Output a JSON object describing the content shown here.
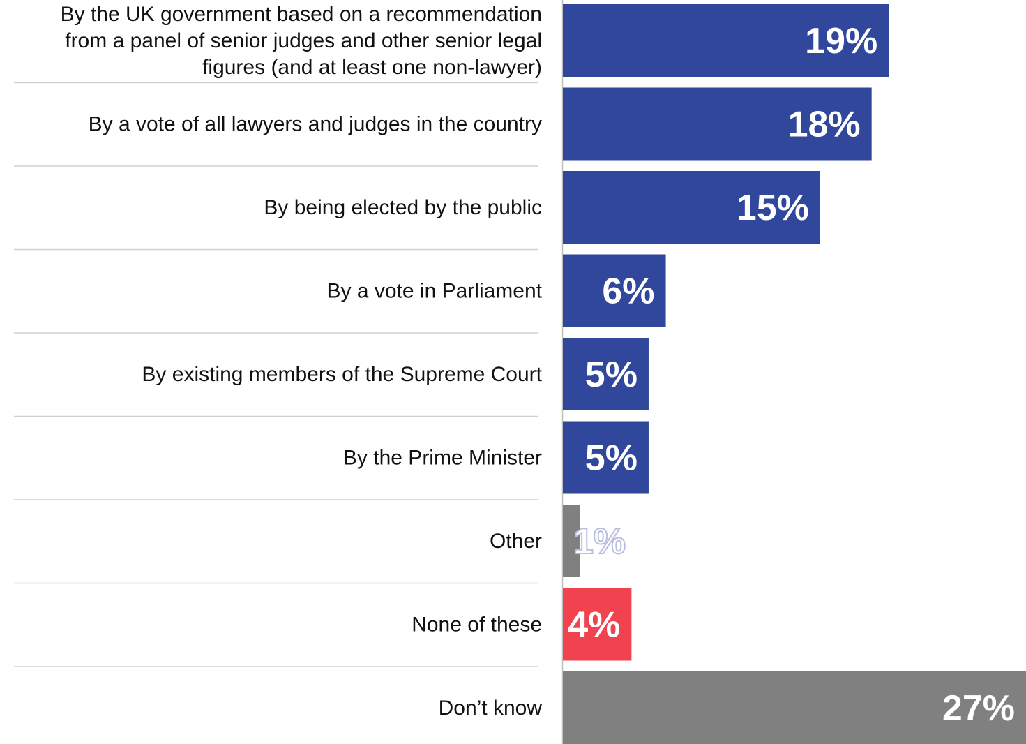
{
  "chart_data": {
    "type": "bar",
    "orientation": "horizontal",
    "title": "",
    "xlabel": "",
    "ylabel": "",
    "xlim": [
      0,
      27
    ],
    "grid": false,
    "legend": "none",
    "categories": [
      "By the UK government based on a recommendation from a panel of senior judges and other senior legal figures (and at least one non-lawyer)",
      "By a vote of all lawyers and judges in the country",
      "By being elected by the public",
      "By a vote in Parliament",
      "By existing members of the Supreme Court",
      "By the Prime Minister",
      "Other",
      "None of these",
      "Don’t know"
    ],
    "category_lines": [
      [
        "By the UK government based on a recommendation",
        "from a panel of senior judges and other senior legal",
        "figures (and at least one non-lawyer)"
      ],
      [
        "By a vote of all lawyers and judges in the country"
      ],
      [
        "By being elected by the public"
      ],
      [
        "By a vote in Parliament"
      ],
      [
        "By existing members of the Supreme Court"
      ],
      [
        "By the Prime Minister"
      ],
      [
        "Other"
      ],
      [
        "None of these"
      ],
      [
        "Don’t know"
      ]
    ],
    "values": [
      19,
      18,
      15,
      6,
      5,
      5,
      1,
      4,
      27
    ],
    "value_labels": [
      "19%",
      "18%",
      "15%",
      "6%",
      "5%",
      "5%",
      "1%",
      "4%",
      "27%"
    ],
    "bar_colors": [
      "#31479c",
      "#31479c",
      "#31479c",
      "#31479c",
      "#31479c",
      "#31479c",
      "#808080",
      "#f0434f",
      "#808080"
    ],
    "value_label_color": "#ffffff",
    "outlined_value_label_color": "#b8bfdc"
  }
}
